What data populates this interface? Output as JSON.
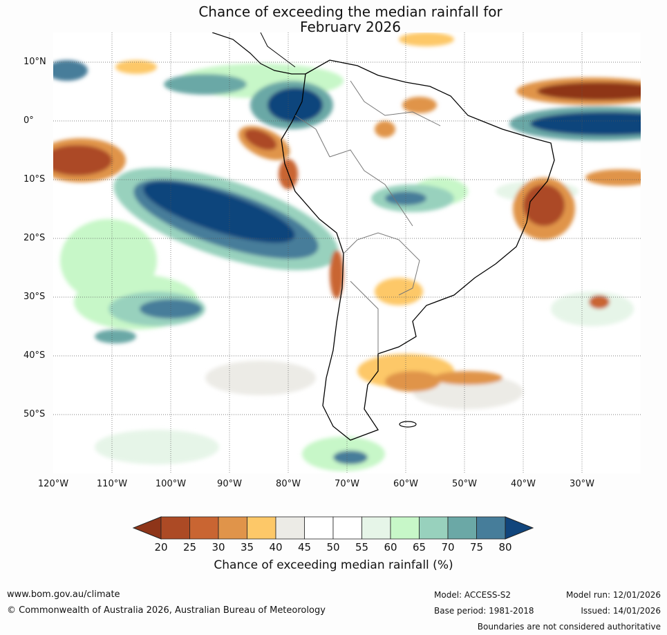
{
  "title": {
    "line1": "Chance of exceeding the median rainfall for",
    "line2": "February 2026"
  },
  "map": {
    "region": "South America",
    "lat_labels": [
      "10°N",
      "0°",
      "10°S",
      "20°S",
      "30°S",
      "40°S",
      "50°S"
    ],
    "lon_labels": [
      "120°W",
      "110°W",
      "100°W",
      "90°W",
      "80°W",
      "70°W",
      "60°W",
      "50°W",
      "40°W",
      "30°W"
    ]
  },
  "colorbar": {
    "ticks": [
      "20",
      "25",
      "30",
      "35",
      "40",
      "45",
      "50",
      "55",
      "60",
      "65",
      "70",
      "75",
      "80"
    ],
    "colors": [
      "#8e3519",
      "#ac4a25",
      "#c96532",
      "#e0944a",
      "#fdc868",
      "#ecebe6",
      "#ffffff",
      "#ffffff",
      "#e6f5e8",
      "#c7f7c8",
      "#98d1bd",
      "#6ba8a6",
      "#467d9a",
      "#11457c"
    ],
    "label": "Chance of exceeding median rainfall (%)"
  },
  "footer": {
    "website": "www.bom.gov.au/climate",
    "copyright": "© Commonwealth of Australia 2026, Australian Bureau of Meteorology",
    "model": "Model: ACCESS-S2",
    "base_period": "Base period: 1981-2018",
    "model_run": "Model run: 12/01/2026",
    "issued": "Issued: 14/01/2026",
    "disclaimer": "Boundaries are not considered authoritative"
  }
}
